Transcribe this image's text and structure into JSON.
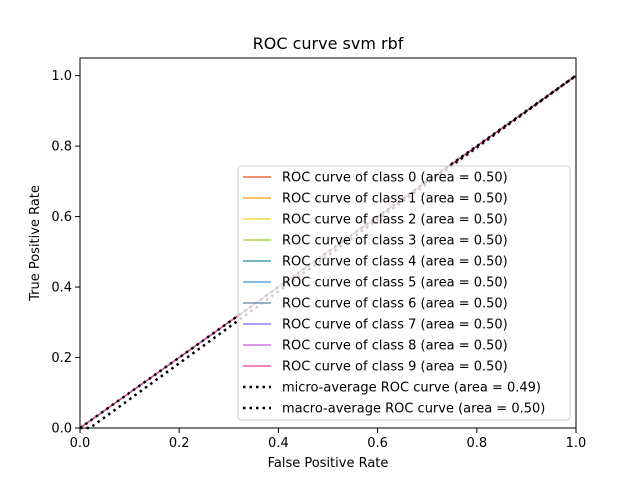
{
  "chart_data": {
    "type": "line",
    "title": "ROC curve svm rbf",
    "xlabel": "False Positive Rate",
    "ylabel": "True Positive Rate",
    "xlim": [
      0.0,
      1.0
    ],
    "ylim": [
      0.0,
      1.05
    ],
    "xticks": [
      "0.0",
      "0.2",
      "0.4",
      "0.6",
      "0.8",
      "1.0"
    ],
    "yticks": [
      "0.0",
      "0.2",
      "0.4",
      "0.6",
      "0.8",
      "1.0"
    ],
    "grid": false,
    "legend_position": "lower-right",
    "series": [
      {
        "name": "ROC curve of class 0 (area = 0.50)",
        "color": "#e8501a",
        "style": "solid",
        "x": [
          0,
          1
        ],
        "y": [
          0,
          1
        ]
      },
      {
        "name": "ROC curve of class 1 (area = 0.50)",
        "color": "#f39c12",
        "style": "solid",
        "x": [
          0,
          1
        ],
        "y": [
          0,
          1
        ]
      },
      {
        "name": "ROC curve of class 2 (area = 0.50)",
        "color": "#e6d11c",
        "style": "solid",
        "x": [
          0,
          1
        ],
        "y": [
          0,
          1
        ]
      },
      {
        "name": "ROC curve of class 3 (area = 0.50)",
        "color": "#9acd32",
        "style": "solid",
        "x": [
          0,
          1
        ],
        "y": [
          0,
          1
        ]
      },
      {
        "name": "ROC curve of class 4 (area = 0.50)",
        "color": "#20958f",
        "style": "solid",
        "x": [
          0,
          1
        ],
        "y": [
          0,
          1
        ]
      },
      {
        "name": "ROC curve of class 5 (area = 0.50)",
        "color": "#3b8fd1",
        "style": "solid",
        "x": [
          0,
          1
        ],
        "y": [
          0,
          1
        ]
      },
      {
        "name": "ROC curve of class 6 (area = 0.50)",
        "color": "#6a7fa8",
        "style": "solid",
        "x": [
          0,
          1
        ],
        "y": [
          0,
          1
        ]
      },
      {
        "name": "ROC curve of class 7 (area = 0.50)",
        "color": "#7b68ee",
        "style": "solid",
        "x": [
          0,
          1
        ],
        "y": [
          0,
          1
        ]
      },
      {
        "name": "ROC curve of class 8 (area = 0.50)",
        "color": "#c45ad8",
        "style": "solid",
        "x": [
          0,
          1
        ],
        "y": [
          0,
          1
        ]
      },
      {
        "name": "ROC curve of class 9 (area = 0.50)",
        "color": "#e83e8c",
        "style": "solid",
        "x": [
          0,
          1
        ],
        "y": [
          0,
          1
        ]
      },
      {
        "name": "micro-average ROC curve (area = 0.49)",
        "color": "#000000",
        "style": "dotted",
        "x": [
          0,
          0.02,
          1
        ],
        "y": [
          0,
          0,
          1
        ]
      },
      {
        "name": "macro-average ROC curve (area = 0.50)",
        "color": "#000000",
        "style": "dotted",
        "x": [
          0,
          1
        ],
        "y": [
          0,
          1
        ]
      }
    ]
  }
}
